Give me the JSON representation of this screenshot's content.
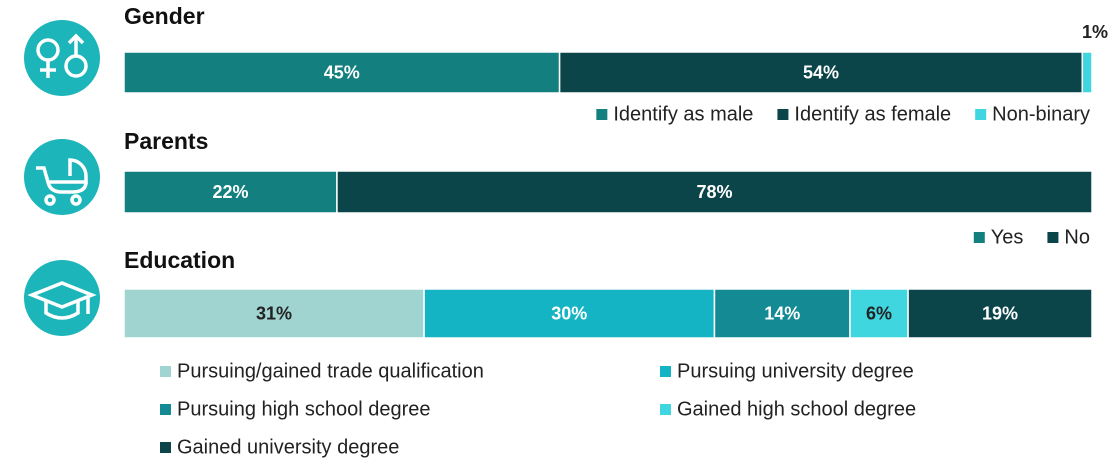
{
  "chart_data": [
    {
      "type": "bar",
      "orientation": "horizontal",
      "stacked": true,
      "title": "Gender",
      "series": [
        {
          "name": "Identify as male",
          "color": "#137f7f",
          "values": [
            45
          ],
          "value_labels": [
            "45%"
          ]
        },
        {
          "name": "Identify as female",
          "color": "#0b4549",
          "values": [
            54
          ],
          "value_labels": [
            "54%"
          ]
        },
        {
          "name": "Non-binary",
          "color": "#3fd6e0",
          "values": [
            1
          ],
          "value_labels": [
            "1%"
          ]
        }
      ]
    },
    {
      "type": "bar",
      "orientation": "horizontal",
      "stacked": true,
      "title": "Parents",
      "series": [
        {
          "name": "Yes",
          "color": "#137f7f",
          "values": [
            22
          ],
          "value_labels": [
            "22%"
          ]
        },
        {
          "name": "No",
          "color": "#0b4549",
          "values": [
            78
          ],
          "value_labels": [
            "78%"
          ]
        }
      ]
    },
    {
      "type": "bar",
      "orientation": "horizontal",
      "stacked": true,
      "title": "Education",
      "series": [
        {
          "name": "Pursuing/gained trade qualification",
          "color": "#9fd4d1",
          "values": [
            31
          ],
          "value_labels": [
            "31%"
          ]
        },
        {
          "name": "Pursuing university degree",
          "color": "#15b4c4",
          "values": [
            30
          ],
          "value_labels": [
            "30%"
          ]
        },
        {
          "name": "Pursuing high school degree",
          "color": "#138a94",
          "values": [
            14
          ],
          "value_labels": [
            "14%"
          ]
        },
        {
          "name": "Gained high school degree",
          "color": "#3fd6e0",
          "values": [
            6
          ],
          "value_labels": [
            "6%"
          ]
        },
        {
          "name": "Gained university degree",
          "color": "#0b4549",
          "values": [
            19
          ],
          "value_labels": [
            "19%"
          ]
        }
      ]
    }
  ]
}
